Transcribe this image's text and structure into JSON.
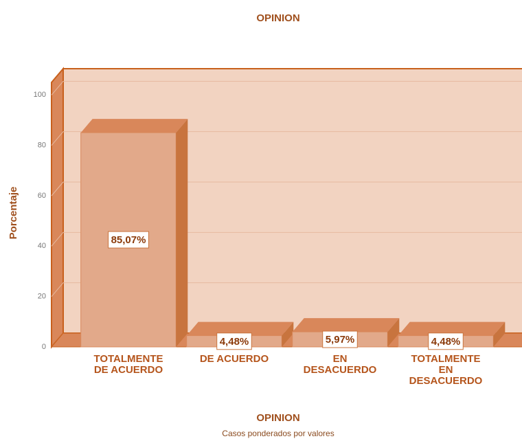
{
  "chart_data": {
    "type": "bar3d",
    "title": "OPINION",
    "x_label": "OPINION",
    "subtitle": "Casos ponderados por valores",
    "y_label": "Porcentaje",
    "categories": [
      "TOTALMENTE DE ACUERDO",
      "DE ACUERDO",
      "EN DESACUERDO",
      "TOTALMENTE EN DESACUERDO"
    ],
    "values": [
      85.07,
      4.48,
      5.97,
      4.48
    ],
    "value_labels": [
      "85,07%",
      "4,48%",
      "5,97%",
      "4,48%"
    ],
    "color": "#e2a98a",
    "ylim": [
      0,
      105
    ],
    "yticks": [
      0,
      20,
      40,
      60,
      80,
      100
    ],
    "grid": true
  }
}
